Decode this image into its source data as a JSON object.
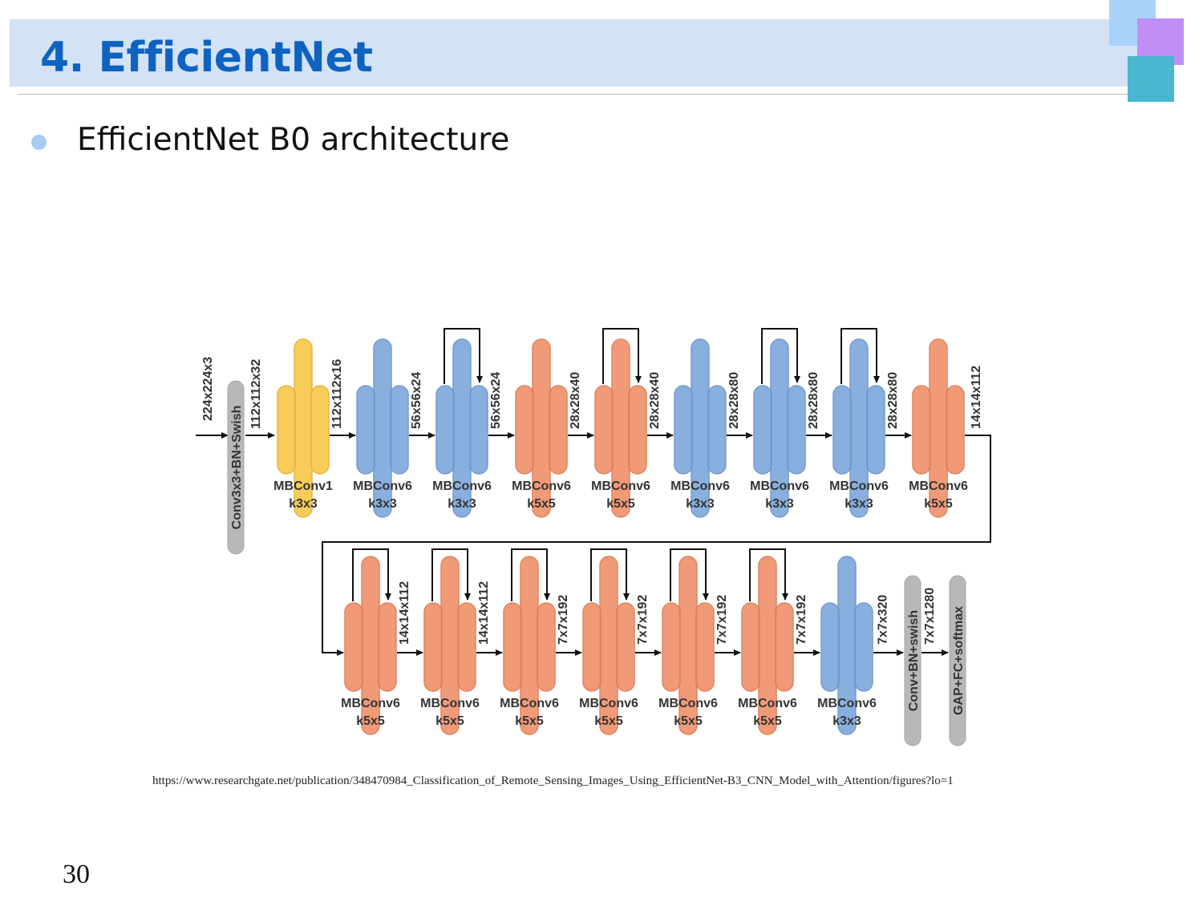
{
  "slide": {
    "title": "4. EfficientNet",
    "bullet": "EfficientNet B0 architecture",
    "source": "https://www.researchgate.net/publication/348470984_Classification_of_Remote_Sensing_Images_Using_EfficientNet-B3_CNN_Model_with_Attention/figures?lo=1",
    "page_number": "30"
  },
  "colors": {
    "title": "#0e63c0",
    "title_band": "#d3e2f5",
    "bullet": "#a6cdf3",
    "yellow": "#f7c84e",
    "blue": "#7fa9dc",
    "orange": "#f0926c",
    "gray": "#b8b8b8"
  },
  "diagram": {
    "input_label": "224x224x3",
    "row1": [
      {
        "kind": "gray",
        "label": "Conv3x3+BN+Swish",
        "out": "112x112x32"
      },
      {
        "kind": "block",
        "name": "MBConv1",
        "kernel": "k3x3",
        "color": "yellow",
        "skip": false,
        "out": "112x112x16"
      },
      {
        "kind": "block",
        "name": "MBConv6",
        "kernel": "k3x3",
        "color": "blue",
        "skip": false,
        "out": "56x56x24"
      },
      {
        "kind": "block",
        "name": "MBConv6",
        "kernel": "k3x3",
        "color": "blue",
        "skip": true,
        "out": "56x56x24"
      },
      {
        "kind": "block",
        "name": "MBConv6",
        "kernel": "k5x5",
        "color": "orange",
        "skip": false,
        "out": "28x28x40"
      },
      {
        "kind": "block",
        "name": "MBConv6",
        "kernel": "k5x5",
        "color": "orange",
        "skip": true,
        "out": "28x28x40"
      },
      {
        "kind": "block",
        "name": "MBConv6",
        "kernel": "k3x3",
        "color": "blue",
        "skip": false,
        "out": "28x28x80"
      },
      {
        "kind": "block",
        "name": "MBConv6",
        "kernel": "k3x3",
        "color": "blue",
        "skip": true,
        "out": "28x28x80"
      },
      {
        "kind": "block",
        "name": "MBConv6",
        "kernel": "k3x3",
        "color": "blue",
        "skip": true,
        "out": "28x28x80"
      },
      {
        "kind": "block",
        "name": "MBConv6",
        "kernel": "k5x5",
        "color": "orange",
        "skip": false,
        "out": "14x14x112"
      }
    ],
    "row2": [
      {
        "kind": "block",
        "name": "MBConv6",
        "kernel": "k5x5",
        "color": "orange",
        "skip": true,
        "out": "14x14x112"
      },
      {
        "kind": "block",
        "name": "MBConv6",
        "kernel": "k5x5",
        "color": "orange",
        "skip": true,
        "out": "14x14x112"
      },
      {
        "kind": "block",
        "name": "MBConv6",
        "kernel": "k5x5",
        "color": "orange",
        "skip": true,
        "out": "7x7x192"
      },
      {
        "kind": "block",
        "name": "MBConv6",
        "kernel": "k5x5",
        "color": "orange",
        "skip": true,
        "out": "7x7x192"
      },
      {
        "kind": "block",
        "name": "MBConv6",
        "kernel": "k5x5",
        "color": "orange",
        "skip": true,
        "out": "7x7x192"
      },
      {
        "kind": "block",
        "name": "MBConv6",
        "kernel": "k5x5",
        "color": "orange",
        "skip": true,
        "out": "7x7x192"
      },
      {
        "kind": "block",
        "name": "MBConv6",
        "kernel": "k3x3",
        "color": "blue",
        "skip": false,
        "out": "7x7x320"
      },
      {
        "kind": "gray",
        "label": "Conv+BN+swish",
        "out": "7x7x1280"
      },
      {
        "kind": "gray",
        "label": "GAP+FC+softmax",
        "out": ""
      }
    ]
  }
}
